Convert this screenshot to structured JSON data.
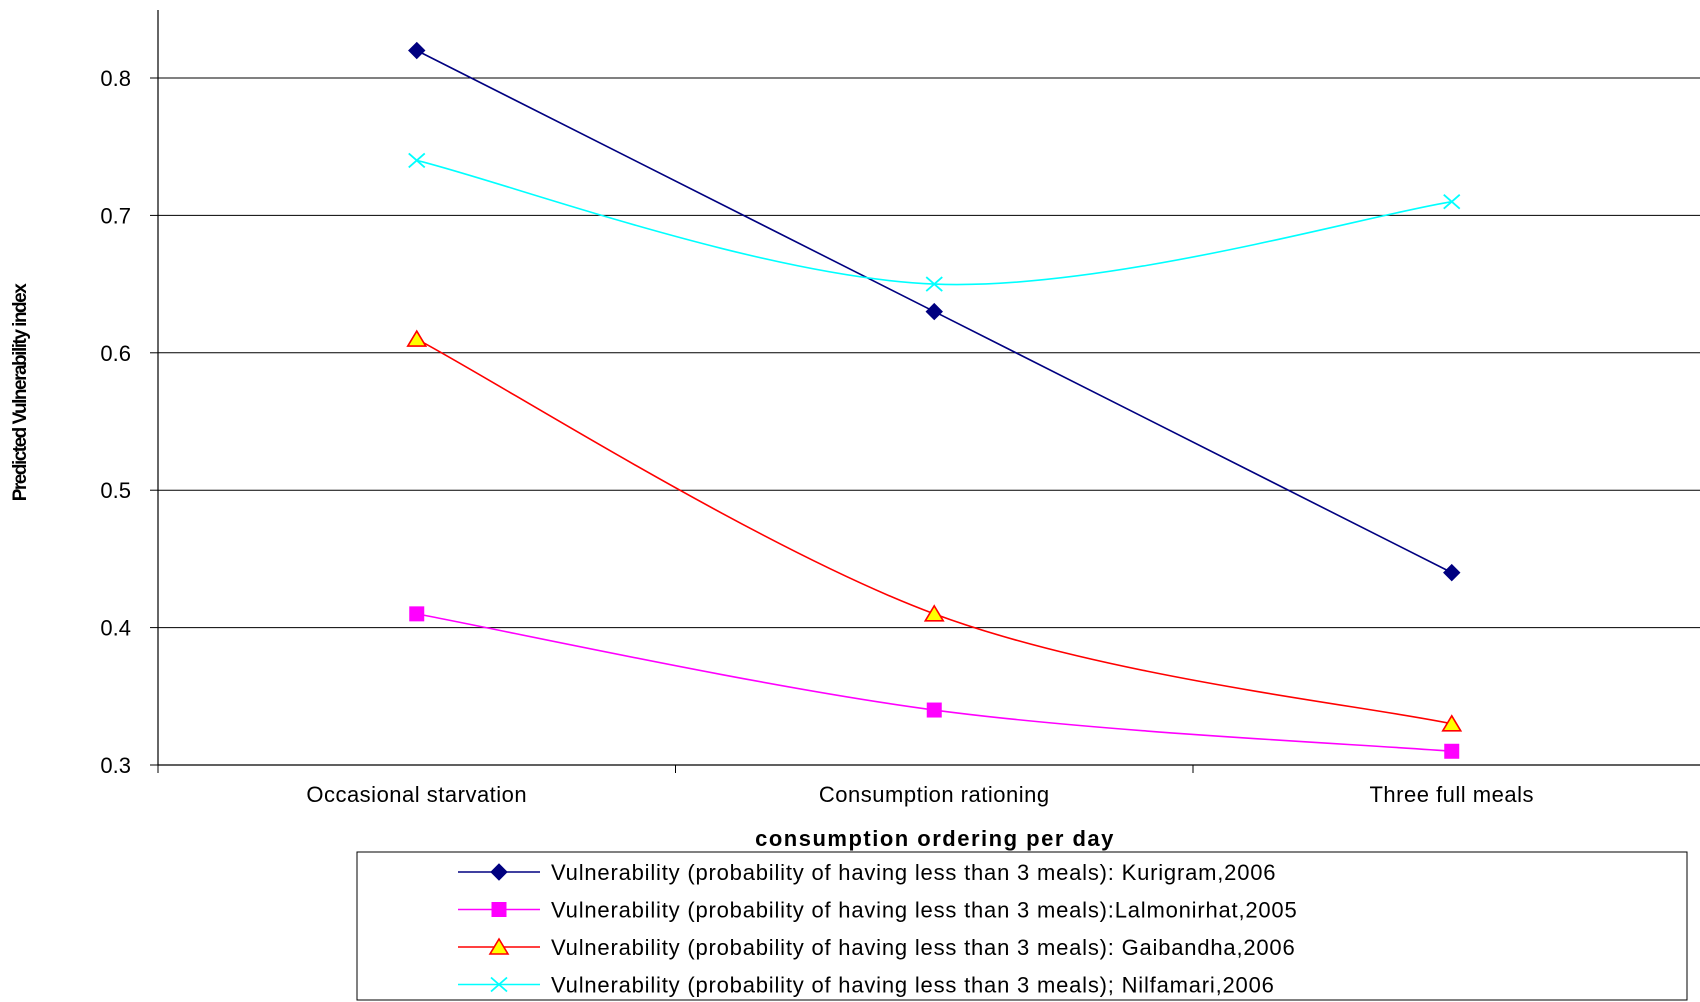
{
  "chart_data": {
    "type": "line",
    "categories": [
      "Occasional starvation",
      "Consumption rationing",
      "Three full meals"
    ],
    "xlabel": "consumption ordering per day",
    "ylabel": "Predicted Vulnerability index",
    "ylim": [
      0.3,
      0.85
    ],
    "yticks": [
      "0.3",
      "0.4",
      "0.5",
      "0.6",
      "0.7",
      "0.8"
    ],
    "grid": true,
    "legend_position": "bottom",
    "series": [
      {
        "name": "Vulnerability (probability of having less than 3 meals): Kurigram,2006",
        "values": [
          0.82,
          0.63,
          0.44
        ],
        "color": "#000080",
        "marker": "diamond",
        "smooth": false
      },
      {
        "name": "Vulnerability (probability of having less than 3 meals):Lalmonirhat,2005",
        "values": [
          0.41,
          0.34,
          0.31
        ],
        "color": "#FF00FF",
        "marker": "square",
        "smooth": true
      },
      {
        "name": "Vulnerability (probability of having less than 3 meals): Gaibandha,2006",
        "values": [
          0.61,
          0.41,
          0.33
        ],
        "color": "#FF0000",
        "marker": "triangle",
        "marker_fill": "#FFFF00",
        "smooth": true
      },
      {
        "name": "Vulnerability (probability of having less than 3 meals); Nilfamari,2006",
        "values": [
          0.74,
          0.65,
          0.71
        ],
        "color": "#00FFFF",
        "marker": "x",
        "smooth": true
      }
    ]
  }
}
